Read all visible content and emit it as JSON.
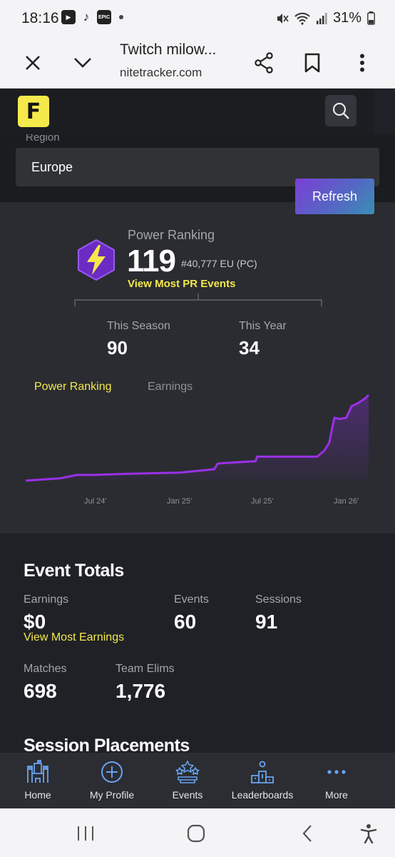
{
  "status_bar": {
    "time": "18:16",
    "battery": "31%",
    "app_icons": [
      "youtube-icon",
      "tiktok-icon",
      "epic-games-icon"
    ]
  },
  "browser": {
    "title": "Twitch milow...",
    "url": "nitetracker.com"
  },
  "region": {
    "label": "Region",
    "value": "Europe",
    "refresh_label": "Refresh"
  },
  "power_ranking": {
    "label": "Power Ranking",
    "value": "119",
    "rank": "#40,777 EU (PC)",
    "link": "View Most PR Events",
    "this_season_label": "This Season",
    "this_season_value": "90",
    "this_year_label": "This Year",
    "this_year_value": "34"
  },
  "chart_tabs": {
    "active": "Power Ranking",
    "inactive": "Earnings"
  },
  "chart_data": {
    "type": "area",
    "x_tick_labels": [
      "Jul 24'",
      "Jan 25'",
      "Jul 25'",
      "Jan 26'"
    ],
    "x": [
      0,
      0.1,
      0.15,
      0.2,
      0.3,
      0.45,
      0.55,
      0.56,
      0.67,
      0.675,
      0.85,
      0.87,
      0.885,
      0.9,
      0.915,
      0.935,
      0.95,
      0.97,
      0.99,
      1.0
    ],
    "values": [
      0.0,
      0.02,
      0.05,
      0.05,
      0.06,
      0.07,
      0.1,
      0.15,
      0.17,
      0.21,
      0.21,
      0.26,
      0.33,
      0.55,
      0.54,
      0.55,
      0.65,
      0.68,
      0.72,
      0.75
    ],
    "line_color": "#9b30e8",
    "grid": false,
    "title": "",
    "xlabel": "",
    "ylabel": ""
  },
  "event_totals": {
    "title": "Event Totals",
    "earnings_label": "Earnings",
    "earnings_value": "$0",
    "earnings_link": "View Most Earnings",
    "events_label": "Events",
    "events_value": "60",
    "sessions_label": "Sessions",
    "sessions_value": "91",
    "matches_label": "Matches",
    "matches_value": "698",
    "team_elims_label": "Team Elims",
    "team_elims_value": "1,776"
  },
  "session_placements_title": "Session Placements",
  "bottom_nav": {
    "items": [
      {
        "label": "Home",
        "icon": "castle-icon"
      },
      {
        "label": "My Profile",
        "icon": "plus-circle-icon"
      },
      {
        "label": "Events",
        "icon": "stars-icon"
      },
      {
        "label": "Leaderboards",
        "icon": "podium-icon"
      },
      {
        "label": "More",
        "icon": "more-dots-icon"
      }
    ]
  },
  "colors": {
    "accent_yellow": "#f4e84c",
    "accent_purple": "#9b30e8",
    "nav_icon_blue": "#6aa3f0"
  }
}
